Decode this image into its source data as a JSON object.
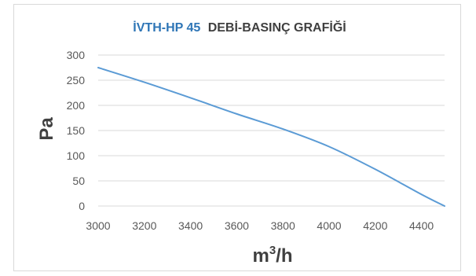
{
  "chart_data": {
    "type": "line",
    "title": {
      "highlight": "İVTH-HP 45",
      "rest": "DEBİ-BASINÇ GRAFİĞİ"
    },
    "xlabel_base": "m",
    "xlabel_sup": "3",
    "xlabel_tail": "/h",
    "ylabel": "Pa",
    "xlim": [
      3000,
      4500
    ],
    "ylim": [
      0,
      300
    ],
    "x_ticks": [
      "3000",
      "3200",
      "3400",
      "3600",
      "3800",
      "4000",
      "4200",
      "4400"
    ],
    "y_ticks": [
      "300",
      "250",
      "200",
      "150",
      "100",
      "50",
      "0"
    ],
    "grid": true,
    "series": [
      {
        "x": [
          3000,
          3200,
          3400,
          3600,
          3800,
          4000,
          4200,
          4400,
          4500
        ],
        "y": [
          275,
          246,
          215,
          183,
          153,
          118,
          73,
          23,
          0
        ]
      }
    ],
    "colors": {
      "line": "#5b9bd5",
      "title_highlight": "#2e75b6",
      "title_rest": "#404040",
      "grid": "#d9d9d9"
    }
  }
}
